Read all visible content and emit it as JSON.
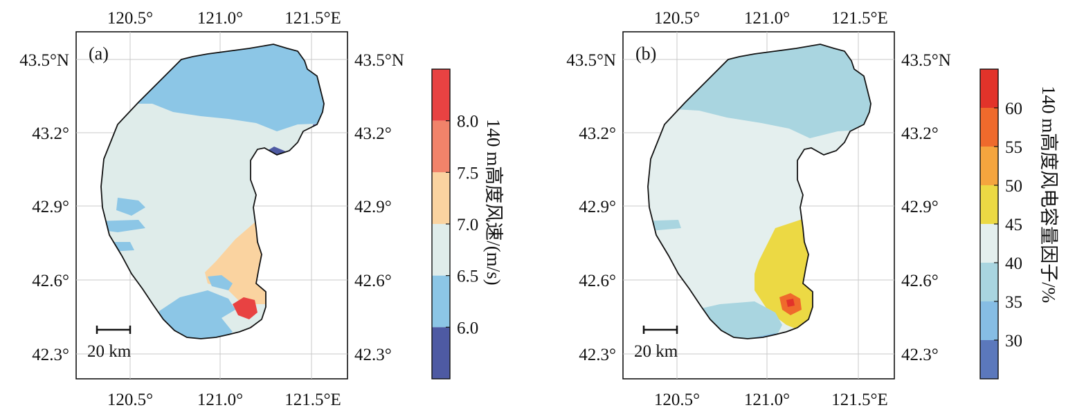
{
  "panels": [
    {
      "id": "a",
      "label": "(a)",
      "lon_ticks": [
        "120.5°",
        "121.0°",
        "121.5°E"
      ],
      "lat_ticks": [
        "43.5°N",
        "43.2°",
        "42.9°",
        "42.6°",
        "42.3°"
      ],
      "scale_bar": "20 km",
      "colorbar": {
        "title": "140 m高度风速/(m/s)",
        "ticks": [
          "8.0",
          "7.5",
          "7.0",
          "6.5",
          "6.0"
        ],
        "colors": [
          "#e84242",
          "#f1836a",
          "#fad3a0",
          "#dfecea",
          "#8cc6e6",
          "#4e5aa3"
        ]
      }
    },
    {
      "id": "b",
      "label": "(b)",
      "lon_ticks": [
        "120.5°",
        "121.0°",
        "121.5°E"
      ],
      "lat_ticks": [
        "43.5°N",
        "43.2°",
        "42.9°",
        "42.6°",
        "42.3°"
      ],
      "scale_bar": "20 km",
      "colorbar": {
        "title": "140 m高度风电容量因子/%",
        "ticks": [
          "60",
          "55",
          "50",
          "45",
          "40",
          "35",
          "30"
        ],
        "colors": [
          "#e2332a",
          "#ef6a2c",
          "#f5a53e",
          "#ecd944",
          "#e4efee",
          "#a9d5e0",
          "#86bde4",
          "#5b78bc"
        ]
      }
    }
  ]
}
